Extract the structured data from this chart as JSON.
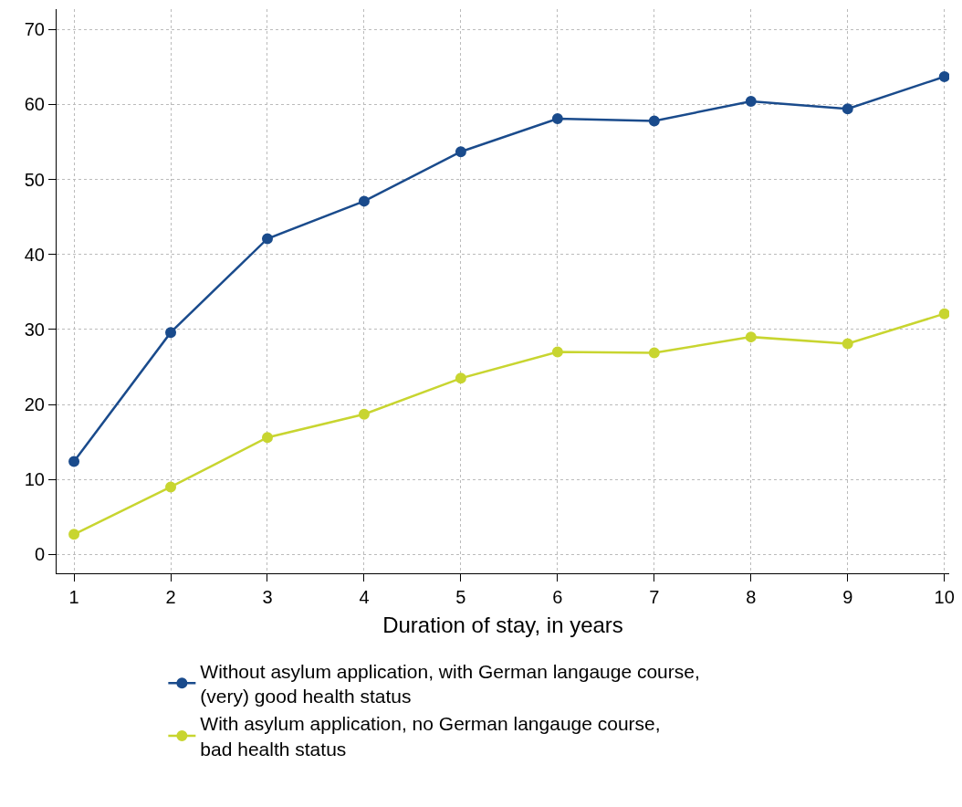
{
  "chart_data": {
    "type": "line",
    "xlabel": "Duration of stay, in years",
    "x": [
      1,
      2,
      3,
      4,
      5,
      6,
      7,
      8,
      9,
      10
    ],
    "series": [
      {
        "name": "Without asylum application, with German langauge course,\n(very) good health status",
        "color": "#1a4b8c",
        "values": [
          12.4,
          29.6,
          42.1,
          47.1,
          53.7,
          58.1,
          57.8,
          60.4,
          59.4,
          63.7
        ]
      },
      {
        "name": "With asylum application, no German langauge course,\nbad health status",
        "color": "#c8d530",
        "values": [
          2.7,
          9.0,
          15.6,
          18.7,
          23.5,
          27.0,
          26.9,
          29.0,
          28.1,
          32.1
        ]
      }
    ],
    "xlim": [
      0.82,
      10.05
    ],
    "xticks": [
      1,
      2,
      3,
      4,
      5,
      6,
      7,
      8,
      9,
      10
    ],
    "ylim": [
      -2.5,
      72.7
    ],
    "yticks": [
      0,
      10,
      20,
      30,
      40,
      50,
      60,
      70
    ],
    "grid": true,
    "legend": "bottom",
    "marker": "circle",
    "line_style": "solid"
  }
}
